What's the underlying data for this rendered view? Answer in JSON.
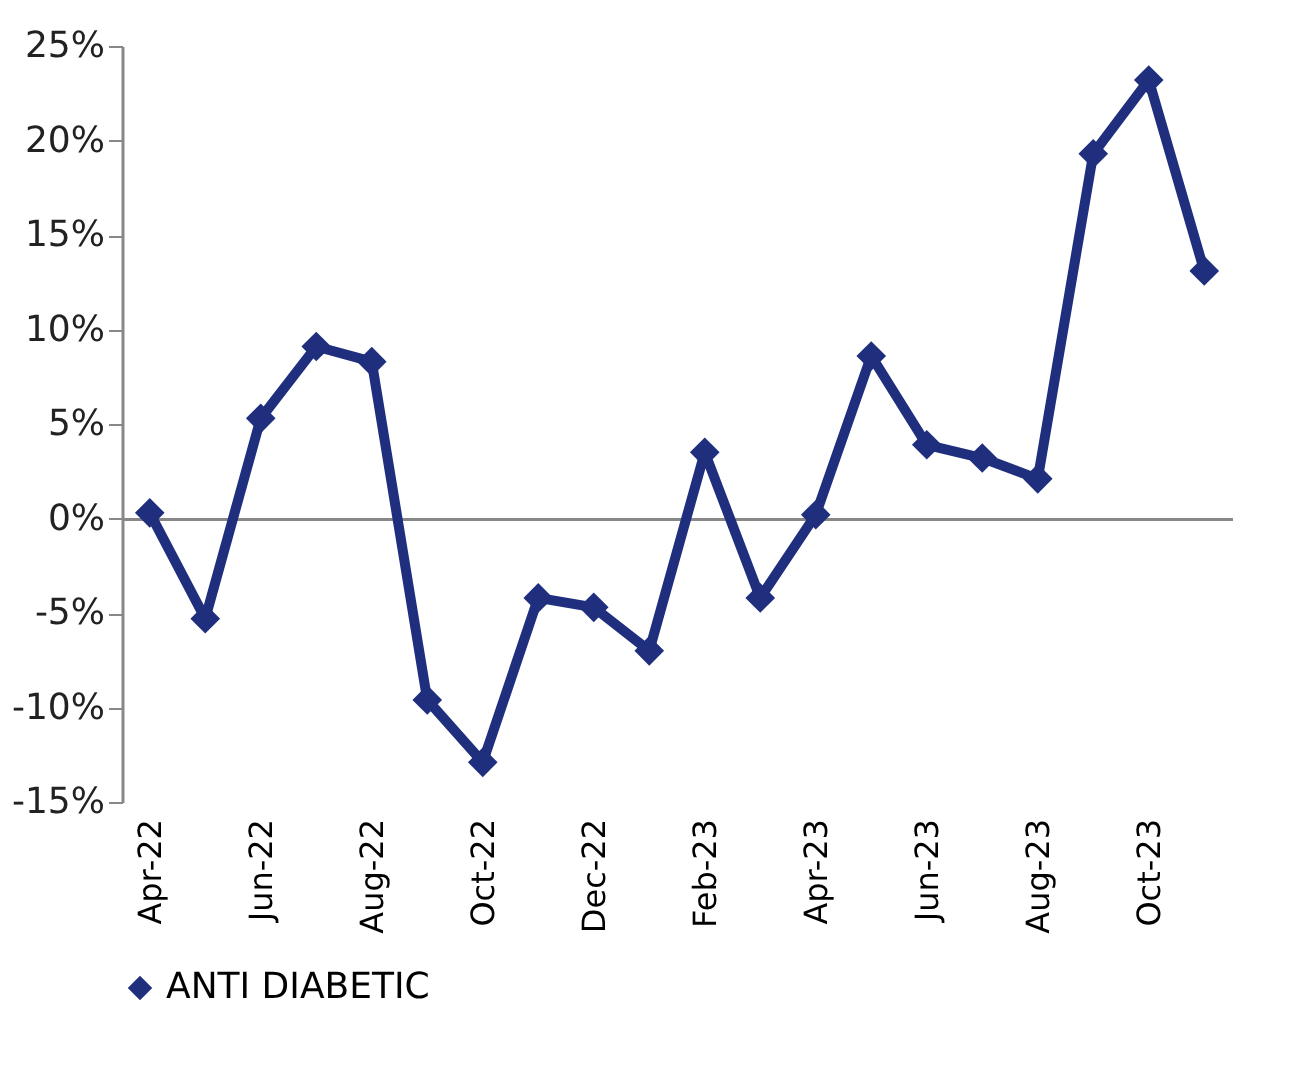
{
  "chart_data": {
    "type": "line",
    "categories": [
      "Apr-22",
      null,
      "Jun-22",
      null,
      "Aug-22",
      null,
      "Oct-22",
      null,
      "Dec-22",
      null,
      "Feb-23",
      null,
      "Apr-23",
      null,
      "Jun-23",
      null,
      "Aug-23",
      null,
      "Oct-23",
      null
    ],
    "series": [
      {
        "name": "ANTI DIABETIC",
        "color": "#1f2f7e",
        "values": [
          0.3,
          -5.3,
          5.3,
          9.1,
          8.3,
          -9.6,
          -12.9,
          -4.2,
          -4.7,
          -7.0,
          3.5,
          -4.2,
          0.2,
          8.6,
          3.9,
          3.2,
          2.1,
          19.3,
          23.2,
          13.1
        ]
      }
    ],
    "ylim": [
      -15,
      25
    ],
    "yticks": [
      {
        "value": -15,
        "label": "-15%"
      },
      {
        "value": -10,
        "label": "-10%"
      },
      {
        "value": -5,
        "label": "-5%"
      },
      {
        "value": 0,
        "label": "0%"
      },
      {
        "value": 5,
        "label": "5%"
      },
      {
        "value": 10,
        "label": "10%"
      },
      {
        "value": 15,
        "label": "15%"
      },
      {
        "value": 20,
        "label": "20%"
      },
      {
        "value": 25,
        "label": "25%"
      }
    ],
    "legend": "bottom",
    "marker": "diamond",
    "line_style": "solid"
  }
}
